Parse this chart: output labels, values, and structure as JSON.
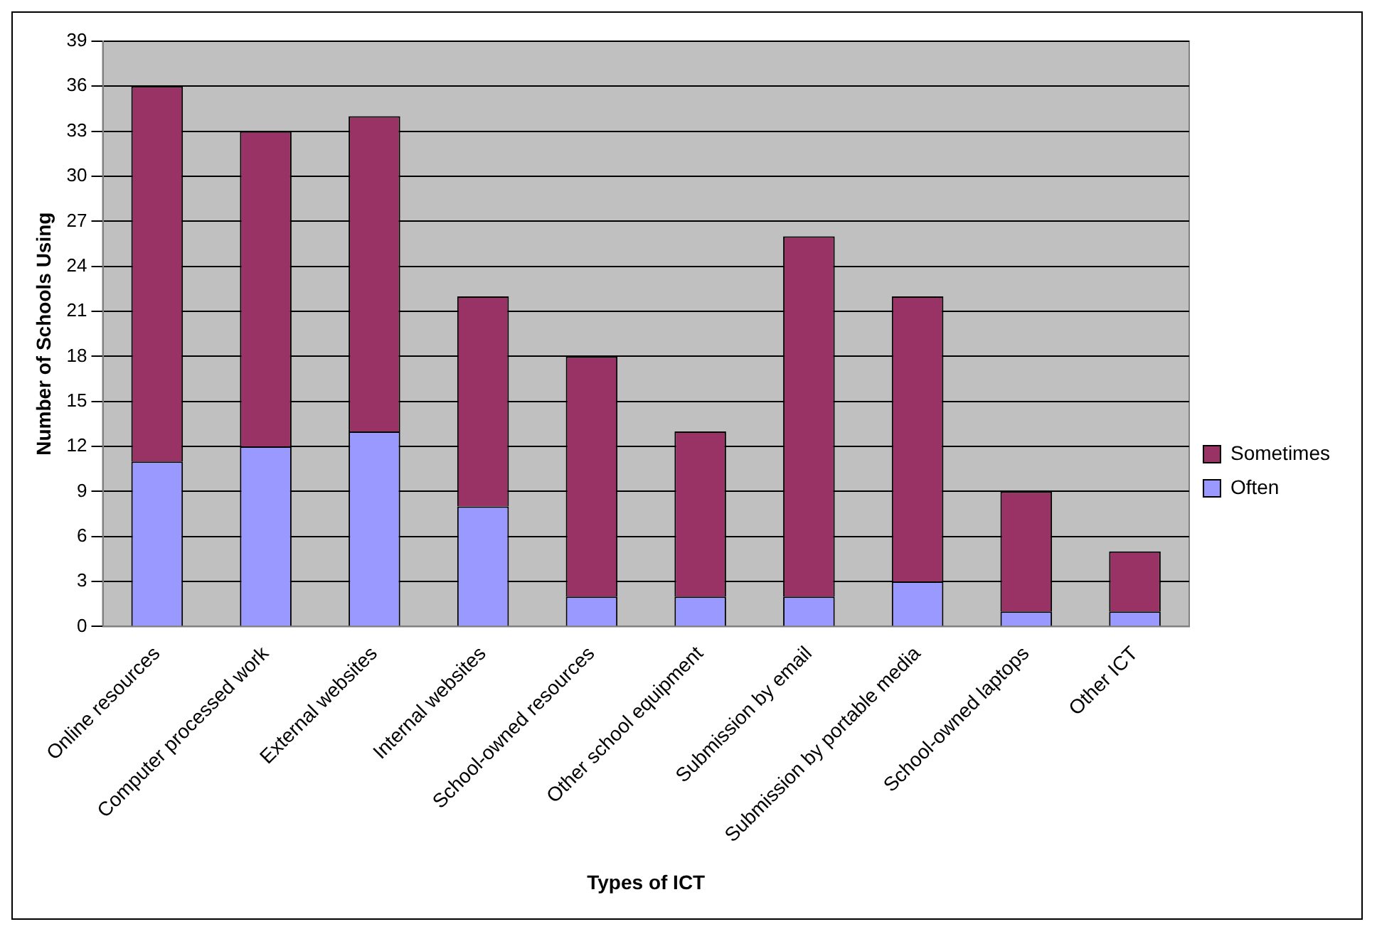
{
  "chart_data": {
    "type": "bar",
    "xlabel": "Types of ICT",
    "ylabel": "Number of Schools Using",
    "categories": [
      "Online resources",
      "Computer processed work",
      "External websites",
      "Internal websites",
      "School-owned resources",
      "Other school equipment",
      "Submission by email",
      "Submission by portable media",
      "School-owned laptops",
      "Other ICT"
    ],
    "series": [
      {
        "name": "Often",
        "color": "#9999ff",
        "values": [
          11,
          12,
          13,
          8,
          2,
          2,
          2,
          3,
          1,
          1
        ]
      },
      {
        "name": "Sometimes",
        "color": "#993366",
        "values": [
          25,
          21,
          21,
          14,
          16,
          11,
          24,
          19,
          8,
          4
        ]
      }
    ],
    "stacked": true,
    "ylim": [
      0,
      39
    ],
    "yticks": [
      0,
      3,
      6,
      9,
      12,
      15,
      18,
      21,
      24,
      27,
      30,
      33,
      36,
      39
    ],
    "grid": "y",
    "legend": "right"
  }
}
